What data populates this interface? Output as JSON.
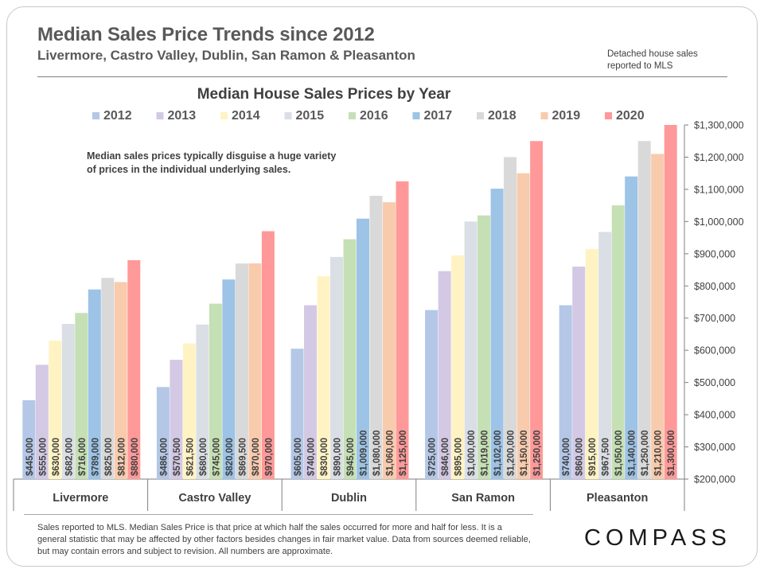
{
  "header": {
    "title": "Median Sales Price Trends since 2012",
    "subtitle": "Livermore, Castro Valley, Dublin, San Ramon & Pleasanton",
    "note_line1": "Detached house sales",
    "note_line2": "reported to MLS"
  },
  "annotation": {
    "line1": "Median sales prices typically disguise a huge variety",
    "line2": "of prices in the individual underlying sales."
  },
  "footnote": "Sales reported to MLS. Median Sales Price is that price at which half the sales occurred for more and half for less. It is a general statistic that may be affected by other factors besides changes in fair market value. Data from sources deemed reliable, but may contain errors and subject to revision.  All numbers are approximate.",
  "logo": {
    "text": "COMPASS"
  },
  "chart_data": {
    "type": "bar",
    "title": "Median House Sales Prices by Year",
    "xlabel": "",
    "ylabel": "",
    "ylim": [
      200000,
      1300000
    ],
    "y_ticks": [
      "$200,000",
      "$300,000",
      "$400,000",
      "$500,000",
      "$600,000",
      "$700,000",
      "$800,000",
      "$900,000",
      "$1,000,000",
      "$1,100,000",
      "$1,200,000",
      "$1,300,000"
    ],
    "y_tick_values": [
      200000,
      300000,
      400000,
      500000,
      600000,
      700000,
      800000,
      900000,
      1000000,
      1100000,
      1200000,
      1300000
    ],
    "axis_side": "right",
    "legend_position": "top",
    "grid": false,
    "categories": [
      "Livermore",
      "Castro Valley",
      "Dublin",
      "San Ramon",
      "Pleasanton"
    ],
    "series": [
      {
        "name": "2012",
        "color": "#b4c7e7",
        "values": [
          445000,
          486000,
          605000,
          725000,
          740000
        ],
        "labels": [
          "$445,000",
          "$486,000",
          "$605,000",
          "$725,000",
          "$740,000"
        ]
      },
      {
        "name": "2013",
        "color": "#d3c9e4",
        "values": [
          555000,
          570500,
          740000,
          846000,
          860000
        ],
        "labels": [
          "$555,000",
          "$570,500",
          "$740,000",
          "$846,000",
          "$860,000"
        ]
      },
      {
        "name": "2014",
        "color": "#fff3c4",
        "values": [
          630000,
          621500,
          830000,
          895000,
          915000
        ],
        "labels": [
          "$630,000",
          "$621,500",
          "$830,000",
          "$895,000",
          "$915,000"
        ]
      },
      {
        "name": "2015",
        "color": "#dadee5",
        "values": [
          682000,
          680000,
          890000,
          1000000,
          967500
        ],
        "labels": [
          "$682,000",
          "$680,000",
          "$890,000",
          "$1,000,000",
          "$967,500"
        ]
      },
      {
        "name": "2016",
        "color": "#c5e0b4",
        "values": [
          716000,
          745000,
          945000,
          1019000,
          1050000
        ],
        "labels": [
          "$716,000",
          "$745,000",
          "$945,000",
          "$1,019,000",
          "$1,050,000"
        ]
      },
      {
        "name": "2017",
        "color": "#9dc3e6",
        "values": [
          789000,
          820000,
          1009000,
          1102000,
          1140000
        ],
        "labels": [
          "$789,000",
          "$820,000",
          "$1,009,000",
          "$1,102,000",
          "$1,140,000"
        ]
      },
      {
        "name": "2018",
        "color": "#d9d9d9",
        "values": [
          825000,
          869500,
          1080000,
          1200000,
          1250000
        ],
        "labels": [
          "$825,000",
          "$869,500",
          "$1,080,000",
          "$1,200,000",
          "$1,250,000"
        ]
      },
      {
        "name": "2019",
        "color": "#f8cbad",
        "values": [
          812000,
          870000,
          1060000,
          1150000,
          1210000
        ],
        "labels": [
          "$812,000",
          "$870,000",
          "$1,060,000",
          "$1,150,000",
          "$1,210,000"
        ]
      },
      {
        "name": "2020",
        "color": "#ff9999",
        "values": [
          880000,
          970000,
          1125000,
          1250000,
          1300000
        ],
        "labels": [
          "$880,000",
          "$970,000",
          "$1,125,000",
          "$1,250,000",
          "$1,300,000"
        ]
      }
    ]
  }
}
